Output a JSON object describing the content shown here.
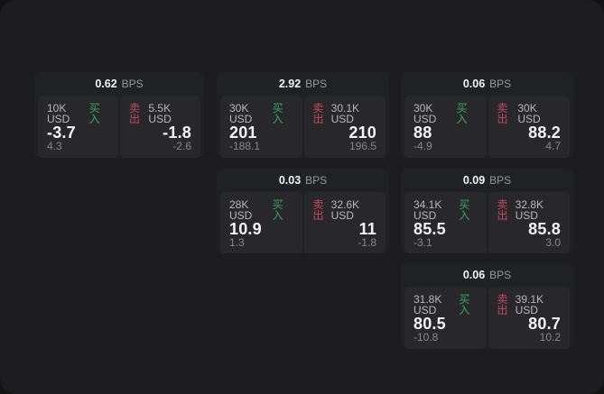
{
  "window": {
    "outer_background": "#131314",
    "panel_background": "#1d1d1f"
  },
  "labels": {
    "bps_unit": "BPS",
    "buy": "买入",
    "sell": "卖出"
  },
  "colors": {
    "buy_green": "#3aa564",
    "sell_red": "#c44a5f",
    "value_white": "#f4f4f5",
    "label_gray": "#b7b7bc",
    "sub_gray": "#87878c",
    "card_background": "#202124",
    "tile_background": "#28282b"
  },
  "cards": [
    {
      "bps": "0.62",
      "buy": {
        "notional": "10K USD",
        "value": "-3.7",
        "sub": "4.3"
      },
      "sell": {
        "notional": "5.5K USD",
        "value": "-1.8",
        "sub": "-2.6"
      }
    },
    {
      "bps": "2.92",
      "buy": {
        "notional": "30K USD",
        "value": "201",
        "sub": "-188.1"
      },
      "sell": {
        "notional": "30.1K USD",
        "value": "210",
        "sub": "196.5"
      }
    },
    {
      "bps": "0.06",
      "buy": {
        "notional": "30K USD",
        "value": "88",
        "sub": "-4.9"
      },
      "sell": {
        "notional": "30K USD",
        "value": "88.2",
        "sub": "4.7"
      }
    },
    {
      "bps": "0.03",
      "buy": {
        "notional": "28K USD",
        "value": "10.9",
        "sub": "1.3"
      },
      "sell": {
        "notional": "32.6K USD",
        "value": "11",
        "sub": "-1.8"
      }
    },
    {
      "bps": "0.09",
      "buy": {
        "notional": "34.1K USD",
        "value": "85.5",
        "sub": "-3.1"
      },
      "sell": {
        "notional": "32.8K USD",
        "value": "85.8",
        "sub": "3.0"
      }
    },
    {
      "bps": "0.06",
      "buy": {
        "notional": "31.8K USD",
        "value": "80.5",
        "sub": "-10.8"
      },
      "sell": {
        "notional": "39.1K USD",
        "value": "80.7",
        "sub": "10.2"
      }
    }
  ]
}
